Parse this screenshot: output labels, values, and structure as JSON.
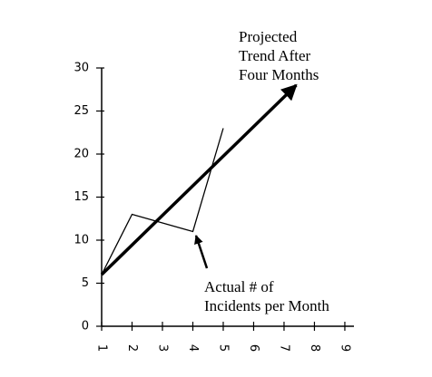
{
  "chart_data": {
    "type": "line",
    "xlim": [
      1,
      9.3
    ],
    "ylim": [
      0,
      30
    ],
    "xticks": [
      1,
      2,
      3,
      4,
      5,
      6,
      7,
      8,
      9
    ],
    "yticks": [
      0,
      5,
      10,
      15,
      20,
      25,
      30
    ],
    "series": [
      {
        "color": "#000000",
        "x": [
          1,
          2,
          4,
          5
        ],
        "values": [
          6,
          13,
          11,
          23
        ]
      },
      {
        "color": "#000000",
        "x": [
          1,
          7.4
        ],
        "values": [
          6,
          28
        ],
        "arrow": true
      }
    ],
    "annotations": [
      {
        "lines": [
          "Projected",
          "Trend After",
          "Four Months"
        ]
      },
      {
        "lines": [
          "Actual # of",
          "Incidents per Month"
        ]
      }
    ]
  }
}
